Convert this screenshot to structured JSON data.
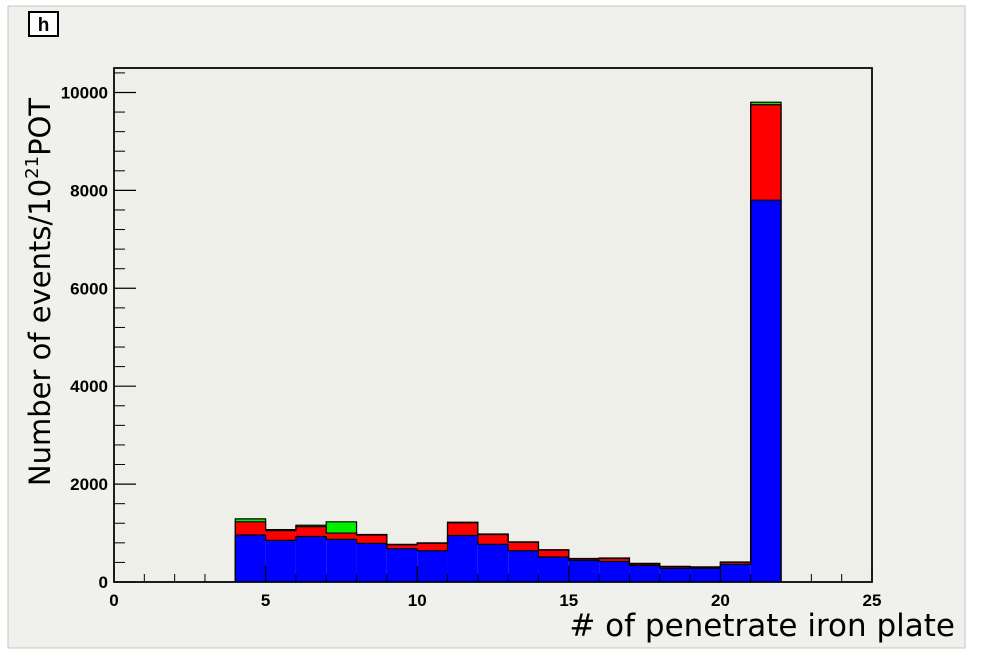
{
  "panel_label": "h",
  "chart_data": {
    "type": "bar",
    "stacked": true,
    "histogram": true,
    "xlabel": "# of penetrate iron plate",
    "ylabel": {
      "prefix": "Number of events/10",
      "exponent": "21",
      "suffix": "POT"
    },
    "xlim": [
      0,
      25
    ],
    "ylim": [
      0,
      10500
    ],
    "xticks": [
      0,
      5,
      10,
      15,
      20,
      25
    ],
    "yticks": [
      0,
      2000,
      4000,
      6000,
      8000,
      10000
    ],
    "bin_edges": [
      4,
      5,
      6,
      7,
      8,
      9,
      10,
      11,
      12,
      13,
      14,
      15,
      16,
      17,
      18,
      19,
      20,
      21,
      22
    ],
    "series": [
      {
        "color": "#0000ff",
        "values": [
          960,
          850,
          930,
          870,
          790,
          680,
          640,
          950,
          770,
          640,
          510,
          440,
          420,
          340,
          280,
          280,
          360,
          7800
        ]
      },
      {
        "color": "#ff0000",
        "values": [
          270,
          200,
          200,
          130,
          170,
          80,
          150,
          260,
          200,
          170,
          140,
          30,
          60,
          30,
          30,
          20,
          40,
          1950
        ]
      },
      {
        "color": "#00ee00",
        "values": [
          60,
          20,
          30,
          230,
          10,
          10,
          10,
          10,
          10,
          10,
          10,
          10,
          10,
          10,
          10,
          10,
          10,
          50
        ]
      }
    ]
  }
}
